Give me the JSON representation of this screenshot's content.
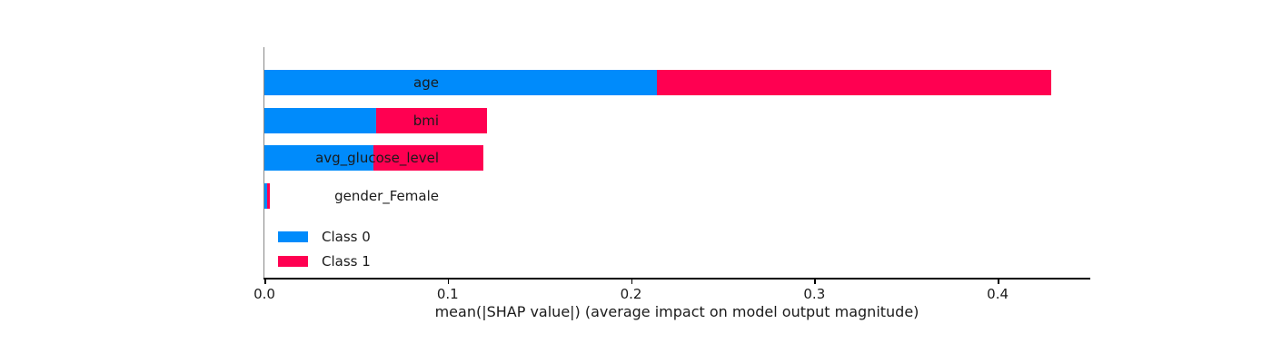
{
  "chart_data": {
    "type": "bar",
    "orientation": "horizontal",
    "stacked": true,
    "title": "",
    "categories": [
      "age",
      "bmi",
      "avg_glucose_level",
      "gender_Female"
    ],
    "series": [
      {
        "name": "Class 0",
        "color": "#008bfb",
        "values": [
          0.214,
          0.0608,
          0.0597,
          0.0016
        ]
      },
      {
        "name": "Class 1",
        "color": "#ff0051",
        "values": [
          0.215,
          0.0608,
          0.0597,
          0.0012
        ]
      }
    ],
    "totals": [
      0.429,
      0.1216,
      0.1194,
      0.0028
    ],
    "xlabel": "mean(|SHAP value|) (average impact on model output magnitude)",
    "ylabel": "",
    "xlim": [
      0,
      0.45
    ],
    "xticks": [
      "0.0",
      "0.1",
      "0.2",
      "0.3",
      "0.4"
    ],
    "grid": false,
    "legend_position": "lower-left-inside",
    "legend_entries": [
      "Class 0",
      "Class 1"
    ]
  },
  "colors": {
    "class0": "#008bfb",
    "class1": "#ff0051",
    "bottom_spine": "#000000",
    "left_spine": "#888888",
    "text": "#1a1a1a",
    "background": "#ffffff"
  }
}
